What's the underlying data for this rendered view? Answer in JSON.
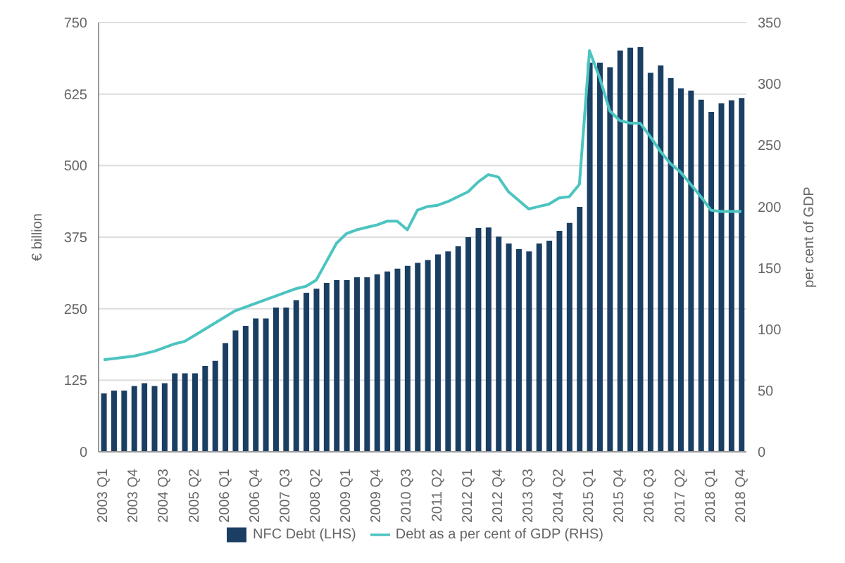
{
  "chart_data": {
    "type": "bar",
    "ylabel": "€ billion",
    "y2label": "per cent of GDP",
    "categories": [
      "2003 Q1",
      null,
      null,
      "2003 Q4",
      null,
      null,
      "2004 Q3",
      null,
      null,
      "2005 Q2",
      null,
      null,
      "2006 Q1",
      null,
      null,
      "2006 Q4",
      null,
      null,
      "2007 Q3",
      null,
      null,
      "2008 Q2",
      null,
      null,
      "2009 Q1",
      null,
      null,
      "2009 Q4",
      null,
      null,
      "2010 Q3",
      null,
      null,
      "2011 Q2",
      null,
      null,
      "2012 Q1",
      null,
      null,
      "2012 Q4",
      null,
      null,
      "2013 Q3",
      null,
      null,
      "2014 Q2",
      null,
      null,
      "2015 Q1",
      null,
      null,
      "2015 Q4",
      null,
      null,
      "2016 Q3",
      null,
      null,
      "2017 Q2",
      null,
      null,
      "2018 Q1",
      null,
      null,
      "2018 Q4"
    ],
    "series": [
      {
        "name": "NFC Debt (LHS)",
        "color": "#1b3f63",
        "values": [
          102,
          107,
          107,
          115,
          120,
          115,
          120,
          137,
          137,
          137,
          150,
          159,
          190,
          212,
          220,
          233,
          233,
          252,
          252,
          265,
          278,
          285,
          295,
          300,
          300,
          305,
          305,
          310,
          315,
          320,
          325,
          330,
          335,
          345,
          350,
          359,
          375,
          391,
          392,
          376,
          364,
          354,
          350,
          364,
          369,
          386,
          400,
          428,
          680,
          680,
          672,
          701,
          706,
          707,
          662,
          675,
          653,
          635,
          631,
          615,
          594,
          609,
          614,
          618
        ]
      },
      {
        "name": "Debt as a per cent of GDP (RHS)",
        "type": "line",
        "axis": "y2",
        "color": "#4cc4c0",
        "values": [
          75,
          76,
          77,
          78,
          80,
          82,
          85,
          88,
          90,
          95,
          100,
          105,
          110,
          115,
          118,
          121,
          124,
          127,
          130,
          133,
          135,
          140,
          155,
          170,
          178,
          181,
          183,
          185,
          188,
          188,
          181,
          197,
          200,
          201,
          204,
          208,
          212,
          220,
          226,
          224,
          212,
          205,
          198,
          200,
          202,
          207,
          208,
          218,
          327,
          305,
          278,
          270,
          268,
          268,
          257,
          245,
          235,
          228,
          218,
          208,
          197,
          196,
          196,
          196
        ]
      }
    ],
    "ylim": [
      0,
      750
    ],
    "yticks": [
      0,
      125,
      250,
      375,
      500,
      625,
      750
    ],
    "y2lim": [
      0,
      350
    ],
    "y2ticks": [
      0,
      50,
      100,
      150,
      200,
      250,
      300,
      350
    ],
    "grid": "y",
    "legend": "bottom",
    "marker": "none",
    "line_style": "solid"
  }
}
